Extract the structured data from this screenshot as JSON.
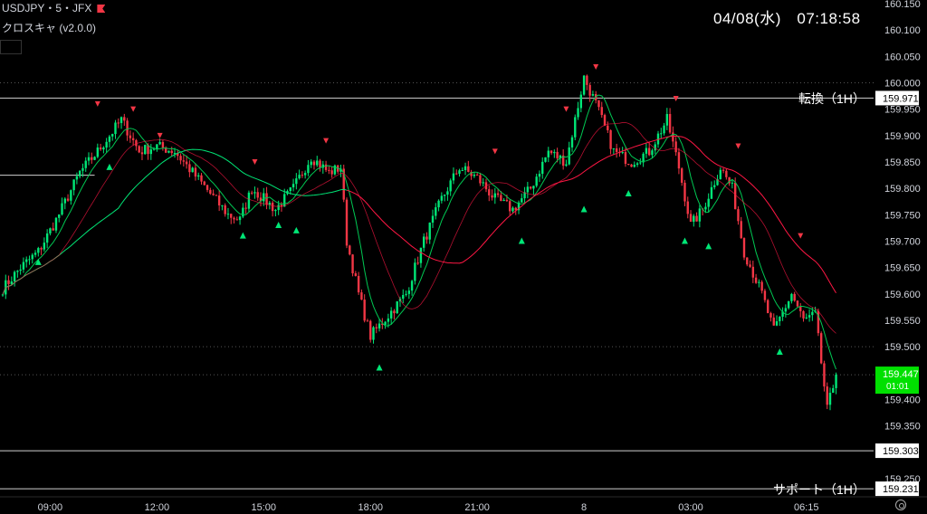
{
  "header": {
    "symbol_line": "USDJPY・5・JFX",
    "indicator_line": "クロスキャ (v2.0.0)"
  },
  "clock": "04/08(水)　07:18:58",
  "colors": {
    "up": "#26a69a",
    "up_bright": "#00e676",
    "down": "#f23645",
    "fast_ma": "#00c853",
    "slow_ma_up": "#00e676",
    "slow_ma_down": "#ff1744",
    "current_price_bg": "#00e000"
  },
  "chart_data": {
    "type": "candlestick",
    "ylim": [
      159.25,
      160.15
    ],
    "y_ticks": [
      "160.150",
      "160.100",
      "160.050",
      "160.000",
      "159.950",
      "159.900",
      "159.850",
      "159.800",
      "159.750",
      "159.700",
      "159.650",
      "159.600",
      "159.550",
      "159.500",
      "159.400",
      "159.350",
      "159.250"
    ],
    "x_ticks": [
      {
        "label": "09:00",
        "bar": 16
      },
      {
        "label": "12:00",
        "bar": 52
      },
      {
        "label": "15:00",
        "bar": 88
      },
      {
        "label": "18:00",
        "bar": 124
      },
      {
        "label": "21:00",
        "bar": 160
      },
      {
        "label": "8",
        "bar": 196
      },
      {
        "label": "03:00",
        "bar": 232
      },
      {
        "label": "06:15",
        "bar": 271
      }
    ],
    "bar_count": 281,
    "price_path": [
      [
        0,
        159.61
      ],
      [
        6,
        159.65
      ],
      [
        12,
        159.68
      ],
      [
        18,
        159.74
      ],
      [
        26,
        159.83
      ],
      [
        32,
        159.87
      ],
      [
        40,
        159.93
      ],
      [
        46,
        159.87
      ],
      [
        52,
        159.88
      ],
      [
        58,
        159.87
      ],
      [
        64,
        159.83
      ],
      [
        70,
        159.79
      ],
      [
        76,
        159.75
      ],
      [
        80,
        159.74
      ],
      [
        84,
        159.8
      ],
      [
        88,
        159.78
      ],
      [
        92,
        159.76
      ],
      [
        98,
        159.8
      ],
      [
        104,
        159.86
      ],
      [
        110,
        159.83
      ],
      [
        114,
        159.84
      ],
      [
        116,
        159.7
      ],
      [
        120,
        159.6
      ],
      [
        124,
        159.52
      ],
      [
        130,
        159.56
      ],
      [
        136,
        159.6
      ],
      [
        142,
        159.7
      ],
      [
        148,
        159.78
      ],
      [
        154,
        159.84
      ],
      [
        160,
        159.82
      ],
      [
        166,
        159.78
      ],
      [
        172,
        159.76
      ],
      [
        178,
        159.8
      ],
      [
        184,
        159.87
      ],
      [
        190,
        159.85
      ],
      [
        196,
        160.01
      ],
      [
        200,
        159.96
      ],
      [
        206,
        159.87
      ],
      [
        212,
        159.85
      ],
      [
        218,
        159.87
      ],
      [
        224,
        159.93
      ],
      [
        228,
        159.84
      ],
      [
        232,
        159.73
      ],
      [
        236,
        159.76
      ],
      [
        242,
        159.84
      ],
      [
        246,
        159.8
      ],
      [
        250,
        159.68
      ],
      [
        256,
        159.6
      ],
      [
        260,
        159.53
      ],
      [
        266,
        159.6
      ],
      [
        270,
        159.55
      ],
      [
        274,
        159.56
      ],
      [
        278,
        159.38
      ],
      [
        281,
        159.447
      ]
    ],
    "fast_ma_color": "#00c853",
    "slow_ma_color_change_bar": 116,
    "sell_signals": [
      {
        "bar": 32,
        "price": 159.96
      },
      {
        "bar": 44,
        "price": 159.95
      },
      {
        "bar": 53,
        "price": 159.9
      },
      {
        "bar": 85,
        "price": 159.85
      },
      {
        "bar": 109,
        "price": 159.89
      },
      {
        "bar": 166,
        "price": 159.87
      },
      {
        "bar": 190,
        "price": 159.95
      },
      {
        "bar": 200,
        "price": 160.03
      },
      {
        "bar": 227,
        "price": 159.97
      },
      {
        "bar": 248,
        "price": 159.88
      },
      {
        "bar": 269,
        "price": 159.71
      }
    ],
    "buy_signals": [
      {
        "bar": 12,
        "price": 159.66
      },
      {
        "bar": 36,
        "price": 159.84
      },
      {
        "bar": 81,
        "price": 159.71
      },
      {
        "bar": 93,
        "price": 159.73
      },
      {
        "bar": 99,
        "price": 159.72
      },
      {
        "bar": 127,
        "price": 159.46
      },
      {
        "bar": 175,
        "price": 159.7
      },
      {
        "bar": 196,
        "price": 159.76
      },
      {
        "bar": 211,
        "price": 159.79
      },
      {
        "bar": 230,
        "price": 159.7
      },
      {
        "bar": 238,
        "price": 159.69
      },
      {
        "bar": 262,
        "price": 159.49
      }
    ],
    "horizontal_lines": [
      {
        "price": 159.971,
        "label": "転換（1H）",
        "tag": "159.971",
        "style": "solid"
      },
      {
        "price": 159.303,
        "label": "",
        "tag": "159.303",
        "style": "solid"
      },
      {
        "price": 159.231,
        "label": "サポート（1H）",
        "tag": "159.231",
        "style": "solid"
      },
      {
        "price": 160.0,
        "style": "dotted"
      },
      {
        "price": 159.5,
        "style": "dotted"
      },
      {
        "price": 159.447,
        "style": "dotted"
      }
    ],
    "early_line": {
      "price": 159.825
    },
    "current_price": {
      "price": "159.447",
      "countdown": "01:01"
    }
  },
  "axis_dates": {
    "clock_label": "04/08(水)　07:18:58"
  }
}
